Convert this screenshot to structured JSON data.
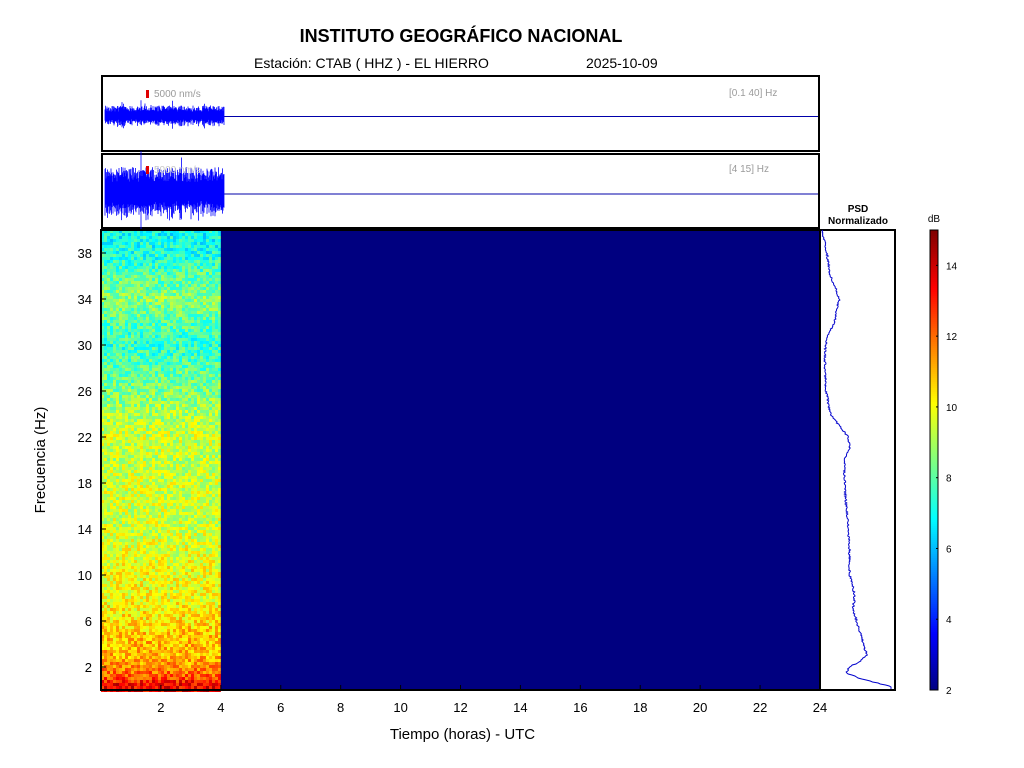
{
  "header": {
    "institution": "INSTITUTO GEOGRÁFICO NACIONAL",
    "station": "Estación:  CTAB ( HHZ ) - EL HIERRO",
    "date": "2025-10-09"
  },
  "traces": [
    {
      "band": "[0.1 40] Hz",
      "scale": "5000 nm/s"
    },
    {
      "band": "[4 15] Hz",
      "scale": "5000 nm/s"
    }
  ],
  "psd": {
    "title_line1": "PSD",
    "title_line2": "Normalizado"
  },
  "colorbar": {
    "unit": "dB",
    "range": [
      2,
      15
    ],
    "ticks": [
      2,
      4,
      6,
      8,
      10,
      12,
      14
    ],
    "colormap": "jet"
  },
  "chart_data": {
    "type": "heatmap",
    "title": "INSTITUTO GEOGRÁFICO NACIONAL",
    "xlabel": "Tiempo (horas) - UTC",
    "ylabel": "Frecuencia  (Hz)",
    "xlim": [
      0,
      24
    ],
    "ylim": [
      0,
      40
    ],
    "xticks": [
      2,
      4,
      6,
      8,
      10,
      12,
      14,
      16,
      18,
      20,
      22,
      24
    ],
    "yticks": [
      2,
      6,
      10,
      14,
      18,
      22,
      26,
      30,
      34,
      38
    ],
    "data_end_hour": 4,
    "frequency_profile_db": [
      {
        "f": 0.5,
        "db": 13.5
      },
      {
        "f": 1,
        "db": 12.5
      },
      {
        "f": 2,
        "db": 11.5
      },
      {
        "f": 3,
        "db": 11
      },
      {
        "f": 4,
        "db": 11
      },
      {
        "f": 6,
        "db": 10.5
      },
      {
        "f": 8,
        "db": 10
      },
      {
        "f": 10,
        "db": 10
      },
      {
        "f": 12,
        "db": 9.8
      },
      {
        "f": 14,
        "db": 9.5
      },
      {
        "f": 16,
        "db": 9.5
      },
      {
        "f": 18,
        "db": 9.5
      },
      {
        "f": 20,
        "db": 9.3
      },
      {
        "f": 22,
        "db": 9.5
      },
      {
        "f": 24,
        "db": 9
      },
      {
        "f": 26,
        "db": 8.5
      },
      {
        "f": 28,
        "db": 8
      },
      {
        "f": 30,
        "db": 7.5
      },
      {
        "f": 32,
        "db": 8
      },
      {
        "f": 34,
        "db": 8.7
      },
      {
        "f": 36,
        "db": 8
      },
      {
        "f": 38,
        "db": 7.2
      },
      {
        "f": 40,
        "db": 7
      }
    ],
    "psd_profile": [
      {
        "f": 0.3,
        "v": 1.0
      },
      {
        "f": 1,
        "v": 0.55
      },
      {
        "f": 1.5,
        "v": 0.35
      },
      {
        "f": 2,
        "v": 0.4
      },
      {
        "f": 2.5,
        "v": 0.55
      },
      {
        "f": 3,
        "v": 0.65
      },
      {
        "f": 4,
        "v": 0.6
      },
      {
        "f": 5,
        "v": 0.55
      },
      {
        "f": 6,
        "v": 0.5
      },
      {
        "f": 7,
        "v": 0.45
      },
      {
        "f": 8,
        "v": 0.47
      },
      {
        "f": 9,
        "v": 0.45
      },
      {
        "f": 10,
        "v": 0.4
      },
      {
        "f": 12,
        "v": 0.4
      },
      {
        "f": 14,
        "v": 0.38
      },
      {
        "f": 16,
        "v": 0.35
      },
      {
        "f": 18,
        "v": 0.33
      },
      {
        "f": 20,
        "v": 0.32
      },
      {
        "f": 21,
        "v": 0.4
      },
      {
        "f": 22,
        "v": 0.38
      },
      {
        "f": 23,
        "v": 0.25
      },
      {
        "f": 24,
        "v": 0.12
      },
      {
        "f": 26,
        "v": 0.06
      },
      {
        "f": 28,
        "v": 0.04
      },
      {
        "f": 30,
        "v": 0.05
      },
      {
        "f": 31,
        "v": 0.1
      },
      {
        "f": 32,
        "v": 0.18
      },
      {
        "f": 34,
        "v": 0.25
      },
      {
        "f": 35,
        "v": 0.2
      },
      {
        "f": 36,
        "v": 0.12
      },
      {
        "f": 38,
        "v": 0.07
      },
      {
        "f": 40,
        "v": 0.0
      }
    ]
  }
}
